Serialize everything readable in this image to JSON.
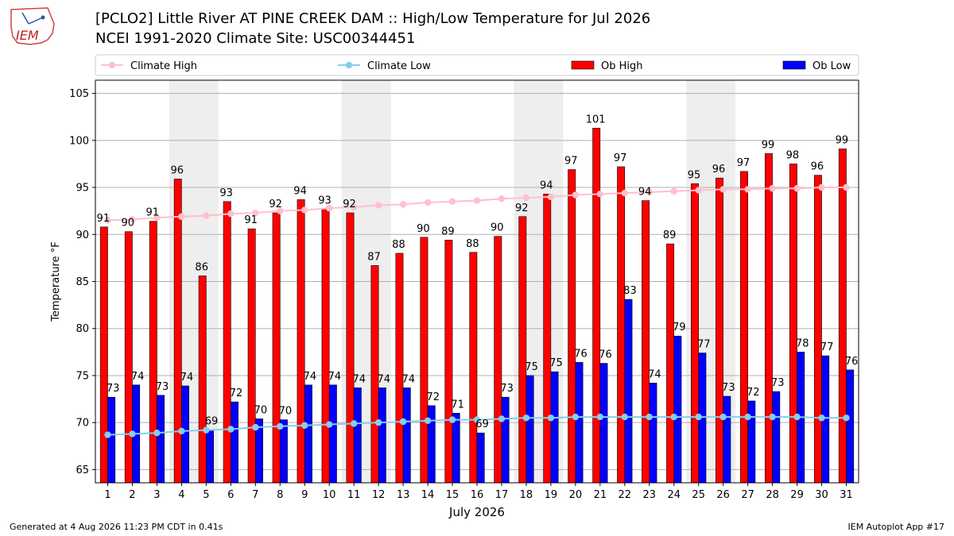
{
  "header": {
    "title_line1": "[PCLO2] Little River  AT PINE CREEK DAM :: High/Low Temperature for Jul 2026",
    "title_line2": "NCEI 1991-2020 Climate Site: USC00344451",
    "logo_text": "IEM"
  },
  "footer": {
    "generated": "Generated at 4 Aug 2026 11:23 PM CDT in 0.41s",
    "app": "IEM Autoplot App #17"
  },
  "colors": {
    "ob_high": "#ff0000",
    "ob_low": "#0000ff",
    "climate_high": "#ffc0cb",
    "climate_low": "#87ceeb",
    "weekend_shade": "#eeeeee",
    "grid": "#b0b0b0"
  },
  "chart_data": {
    "type": "bar",
    "xlabel": "July 2026",
    "ylabel": "Temperature °F",
    "ylim": [
      63.6,
      106.4
    ],
    "yticks": [
      65,
      70,
      75,
      80,
      85,
      90,
      95,
      100,
      105
    ],
    "grid": true,
    "legend_position": "top",
    "categories": [
      1,
      2,
      3,
      4,
      5,
      6,
      7,
      8,
      9,
      10,
      11,
      12,
      13,
      14,
      15,
      16,
      17,
      18,
      19,
      20,
      21,
      22,
      23,
      24,
      25,
      26,
      27,
      28,
      29,
      30,
      31
    ],
    "shaded_days": [
      4,
      5,
      11,
      12,
      18,
      19,
      25,
      26
    ],
    "series": [
      {
        "name": "Climate High",
        "kind": "line",
        "values": [
          91.5,
          91.6,
          91.8,
          91.9,
          92.0,
          92.2,
          92.3,
          92.5,
          92.6,
          92.8,
          92.9,
          93.1,
          93.2,
          93.4,
          93.5,
          93.6,
          93.8,
          93.9,
          94.0,
          94.2,
          94.3,
          94.4,
          94.5,
          94.6,
          94.7,
          94.8,
          94.8,
          94.9,
          94.9,
          95.0,
          95.0
        ]
      },
      {
        "name": "Climate Low",
        "kind": "line",
        "values": [
          68.7,
          68.8,
          68.9,
          69.1,
          69.2,
          69.3,
          69.5,
          69.6,
          69.7,
          69.8,
          69.9,
          70.0,
          70.1,
          70.2,
          70.3,
          70.3,
          70.4,
          70.5,
          70.5,
          70.6,
          70.6,
          70.6,
          70.6,
          70.6,
          70.6,
          70.6,
          70.6,
          70.6,
          70.6,
          70.5,
          70.5
        ]
      },
      {
        "name": "Ob High",
        "kind": "bar",
        "values": [
          90.8,
          90.3,
          91.4,
          95.9,
          85.6,
          93.5,
          90.6,
          92.3,
          93.7,
          92.7,
          92.3,
          86.7,
          88.0,
          89.7,
          89.4,
          88.1,
          89.8,
          91.9,
          94.3,
          96.9,
          101.3,
          97.2,
          93.6,
          89.0,
          95.4,
          96.0,
          96.7,
          98.6,
          97.5,
          96.3,
          99.1
        ],
        "labels": [
          91,
          90,
          91,
          96,
          86,
          93,
          91,
          92,
          94,
          93,
          92,
          87,
          88,
          90,
          89,
          88,
          90,
          92,
          94,
          97,
          101,
          97,
          94,
          89,
          95,
          96,
          97,
          99,
          98,
          96,
          99
        ]
      },
      {
        "name": "Ob Low",
        "kind": "bar",
        "values": [
          72.7,
          74.0,
          72.9,
          73.9,
          69.2,
          72.2,
          70.4,
          70.3,
          74.0,
          74.0,
          73.7,
          73.7,
          73.7,
          71.8,
          71.0,
          68.9,
          72.7,
          75.0,
          75.4,
          76.4,
          76.3,
          83.1,
          74.2,
          79.2,
          77.4,
          72.8,
          72.3,
          73.3,
          77.5,
          77.1,
          75.6
        ],
        "labels": [
          73,
          74,
          73,
          74,
          69,
          72,
          70,
          70,
          74,
          74,
          74,
          74,
          74,
          72,
          71,
          69,
          73,
          75,
          75,
          76,
          76,
          83,
          74,
          79,
          77,
          73,
          72,
          73,
          78,
          77,
          76
        ]
      }
    ]
  }
}
